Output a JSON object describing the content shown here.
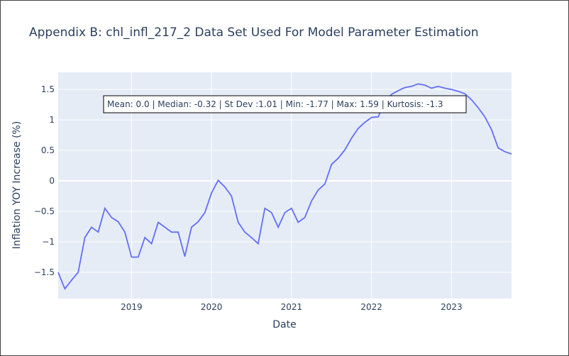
{
  "chart_data": {
    "type": "line",
    "title": "Appendix B: chl_infl_217_2 Data Set Used For Model Parameter Estimation",
    "xlabel": "Date",
    "ylabel": "Inflation YOY Increase (%)",
    "x_tick_labels": [
      "2019",
      "2020",
      "2021",
      "2022",
      "2023"
    ],
    "y_tick_labels": [
      "−1.5",
      "−1",
      "−0.5",
      "0",
      "0.5",
      "1",
      "1.5"
    ],
    "y_ticks": [
      -1.5,
      -1,
      -0.5,
      0,
      0.5,
      1,
      1.5
    ],
    "xlim": [
      "2018-02-01",
      "2023-10-01"
    ],
    "ylim": [
      -1.93,
      1.78
    ],
    "grid": true,
    "annotation": "Mean: 0.0 | Median: -0.32 | St Dev :1.01 | Min: -1.77 | Max: 1.59 | Kurtosis: -1.3",
    "series": [
      {
        "color": "#636efa",
        "x": [
          "2018-02",
          "2018-03",
          "2018-04",
          "2018-05",
          "2018-06",
          "2018-07",
          "2018-08",
          "2018-09",
          "2018-10",
          "2018-11",
          "2018-12",
          "2019-01",
          "2019-02",
          "2019-03",
          "2019-04",
          "2019-05",
          "2019-06",
          "2019-07",
          "2019-08",
          "2019-09",
          "2019-10",
          "2019-11",
          "2019-12",
          "2020-01",
          "2020-02",
          "2020-03",
          "2020-04",
          "2020-05",
          "2020-06",
          "2020-07",
          "2020-08",
          "2020-09",
          "2020-10",
          "2020-11",
          "2020-12",
          "2021-01",
          "2021-02",
          "2021-03",
          "2021-04",
          "2021-05",
          "2021-06",
          "2021-07",
          "2021-08",
          "2021-09",
          "2021-10",
          "2021-11",
          "2021-12",
          "2022-01",
          "2022-02",
          "2022-03",
          "2022-04",
          "2022-05",
          "2022-06",
          "2022-07",
          "2022-08",
          "2022-09",
          "2022-10",
          "2022-11",
          "2022-12",
          "2023-01",
          "2023-02",
          "2023-03",
          "2023-04",
          "2023-05",
          "2023-06",
          "2023-07",
          "2023-08",
          "2023-09",
          "2023-10"
        ],
        "values": [
          -1.5,
          -1.77,
          -1.63,
          -1.5,
          -0.93,
          -0.76,
          -0.84,
          -0.45,
          -0.6,
          -0.67,
          -0.84,
          -1.25,
          -1.25,
          -0.93,
          -1.03,
          -0.68,
          -0.76,
          -0.84,
          -0.84,
          -1.24,
          -0.76,
          -0.67,
          -0.52,
          -0.2,
          0.01,
          -0.1,
          -0.25,
          -0.68,
          -0.84,
          -0.93,
          -1.03,
          -0.45,
          -0.52,
          -0.76,
          -0.52,
          -0.45,
          -0.68,
          -0.6,
          -0.33,
          -0.15,
          -0.05,
          0.27,
          0.37,
          0.51,
          0.7,
          0.86,
          0.96,
          1.04,
          1.05,
          1.3,
          1.42,
          1.48,
          1.53,
          1.55,
          1.59,
          1.57,
          1.52,
          1.55,
          1.52,
          1.5,
          1.47,
          1.43,
          1.33,
          1.2,
          1.05,
          0.84,
          0.54,
          0.48,
          0.44
        ]
      }
    ]
  }
}
